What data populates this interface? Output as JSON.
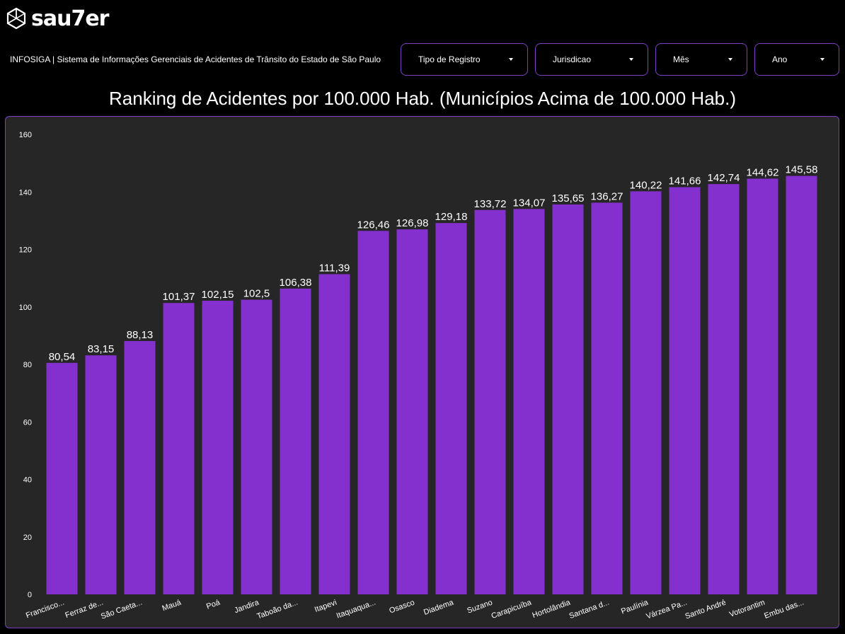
{
  "header": {
    "logo_text": "sau7er",
    "subtitle": "INFOSIGA | Sistema de Informações Gerenciais de Acidentes de Trânsito do Estado de São Paulo"
  },
  "filters": [
    {
      "label": "Tipo de Registro"
    },
    {
      "label": "Jurisdicao"
    },
    {
      "label": "Mês"
    },
    {
      "label": "Ano"
    }
  ],
  "colors": {
    "bar": "#8430ce",
    "panel": "#262626",
    "border": "#7b3fc4"
  },
  "chart_data": {
    "type": "bar",
    "title": "Ranking de Acidentes por 100.000 Hab. (Municípios Acima de 100.000 Hab.)",
    "categories": [
      "Francisco...",
      "Ferraz de...",
      "São Caeta...",
      "Mauá",
      "Poá",
      "Jandira",
      "Taboão da...",
      "Itapevi",
      "Itaquaqua...",
      "Osasco",
      "Diadema",
      "Suzano",
      "Carapicuíba",
      "Hortolândia",
      "Santana d...",
      "Paulínia",
      "Várzea Pa...",
      "Santo André",
      "Votorantim",
      "Embu das..."
    ],
    "values": [
      80.54,
      83.15,
      88.13,
      101.37,
      102.15,
      102.5,
      106.38,
      111.39,
      126.46,
      126.98,
      129.18,
      133.72,
      134.07,
      135.65,
      136.27,
      140.22,
      141.66,
      142.74,
      144.62,
      145.58
    ],
    "value_labels": [
      "80,54",
      "83,15",
      "88,13",
      "101,37",
      "102,15",
      "102,5",
      "106,38",
      "111,39",
      "126,46",
      "126,98",
      "129,18",
      "133,72",
      "134,07",
      "135,65",
      "136,27",
      "140,22",
      "141,66",
      "142,74",
      "144,62",
      "145,58"
    ],
    "y_ticks": [
      "0",
      "20",
      "40",
      "60",
      "80",
      "100",
      "120",
      "140",
      "160"
    ],
    "ylim": [
      0,
      160
    ],
    "xlabel": "",
    "ylabel": "",
    "grid": false
  }
}
